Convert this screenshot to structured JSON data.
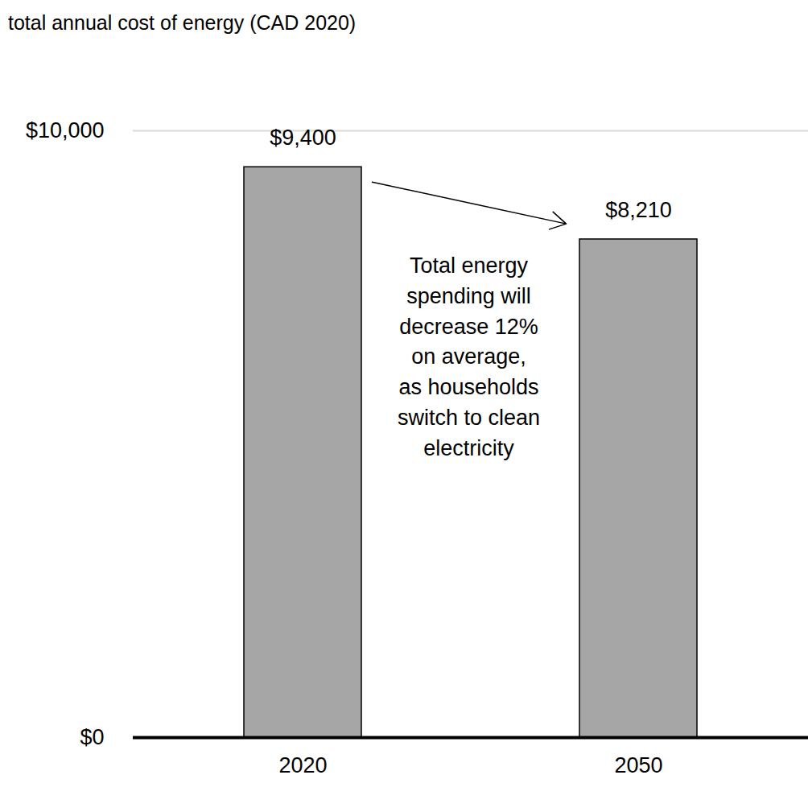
{
  "chart_data": {
    "type": "bar",
    "title": "total annual cost of energy (CAD 2020)",
    "categories": [
      "2020",
      "2050"
    ],
    "values": [
      9400,
      8210
    ],
    "value_labels": [
      "$9,400",
      "$8,210"
    ],
    "color": "#a6a6a6",
    "data_labels": true,
    "grid": true,
    "ylim": [
      0,
      10000
    ],
    "yticks": [
      {
        "value": 0,
        "label": "$0"
      },
      {
        "value": 10000,
        "label": "$10,000"
      }
    ],
    "annotations": [
      {
        "text": "Total energy\nspending will\ndecrease 12%\non average,\nas households\nswitch to clean\nelectricity"
      }
    ]
  }
}
